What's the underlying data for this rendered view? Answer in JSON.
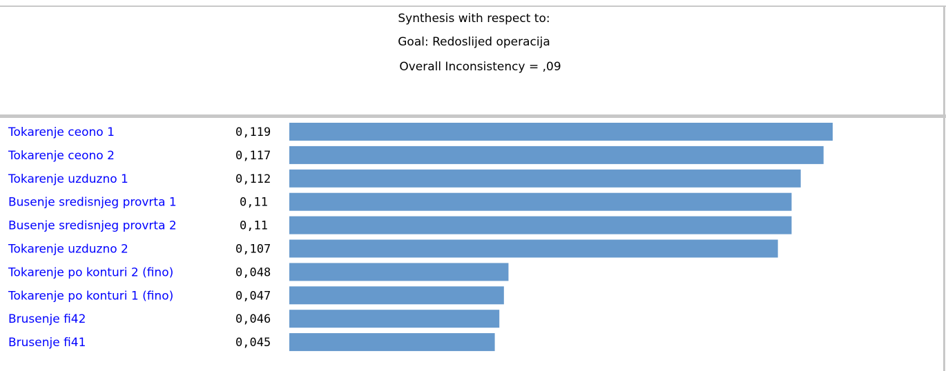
{
  "header": {
    "line1": "Synthesis with respect to:",
    "line2": "Goal: Redoslijed operacija",
    "line3": "Overall Inconsistency = ,09"
  },
  "chart_data": {
    "type": "bar",
    "orientation": "horizontal",
    "categories": [
      "Tokarenje ceono 1",
      "Tokarenje ceono 2",
      "Tokarenje uzduzno 1",
      "Busenje sredisnjeg provrta 1",
      "Busenje sredisnjeg provrta 2",
      "Tokarenje uzduzno 2",
      "Tokarenje po konturi 2 (fino)",
      "Tokarenje po konturi 1 (fino)",
      "Brusenje fi42",
      "Brusenje fi41"
    ],
    "values": [
      0.119,
      0.117,
      0.112,
      0.11,
      0.11,
      0.107,
      0.048,
      0.047,
      0.046,
      0.045
    ],
    "value_labels": [
      "0,119",
      "0,117",
      "0,112",
      "0,11",
      "0,11",
      "0,107",
      "0,048",
      "0,047",
      "0,046",
      "0,045"
    ],
    "xlim": [
      0,
      0.119
    ],
    "grid": false,
    "bar_color": "#6699cc",
    "label_color": "#0000ff"
  }
}
